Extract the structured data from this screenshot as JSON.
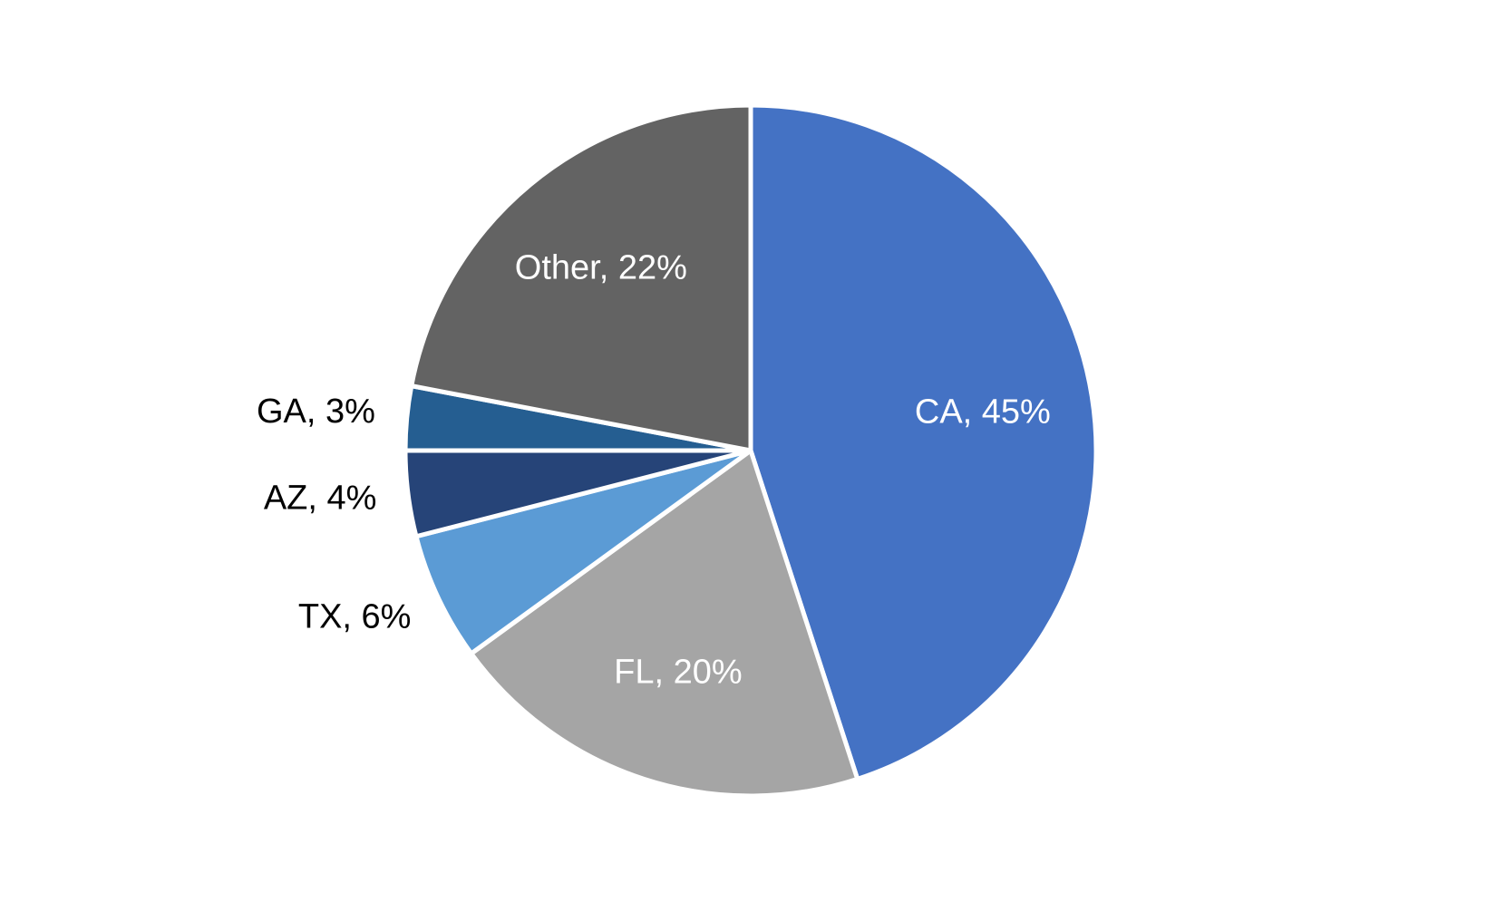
{
  "chart_data": {
    "type": "pie",
    "values": [
      45,
      20,
      6,
      4,
      3,
      22
    ],
    "value_labels": [
      "CA, 45%",
      "FL, 20%",
      "TX, 6%",
      "AZ, 4%",
      "GA, 3%",
      "Other, 22%"
    ],
    "colors": [
      "#4472c4",
      "#a5a5a5",
      "#5b9bd5",
      "#264478",
      "#255e91",
      "#636363"
    ]
  }
}
